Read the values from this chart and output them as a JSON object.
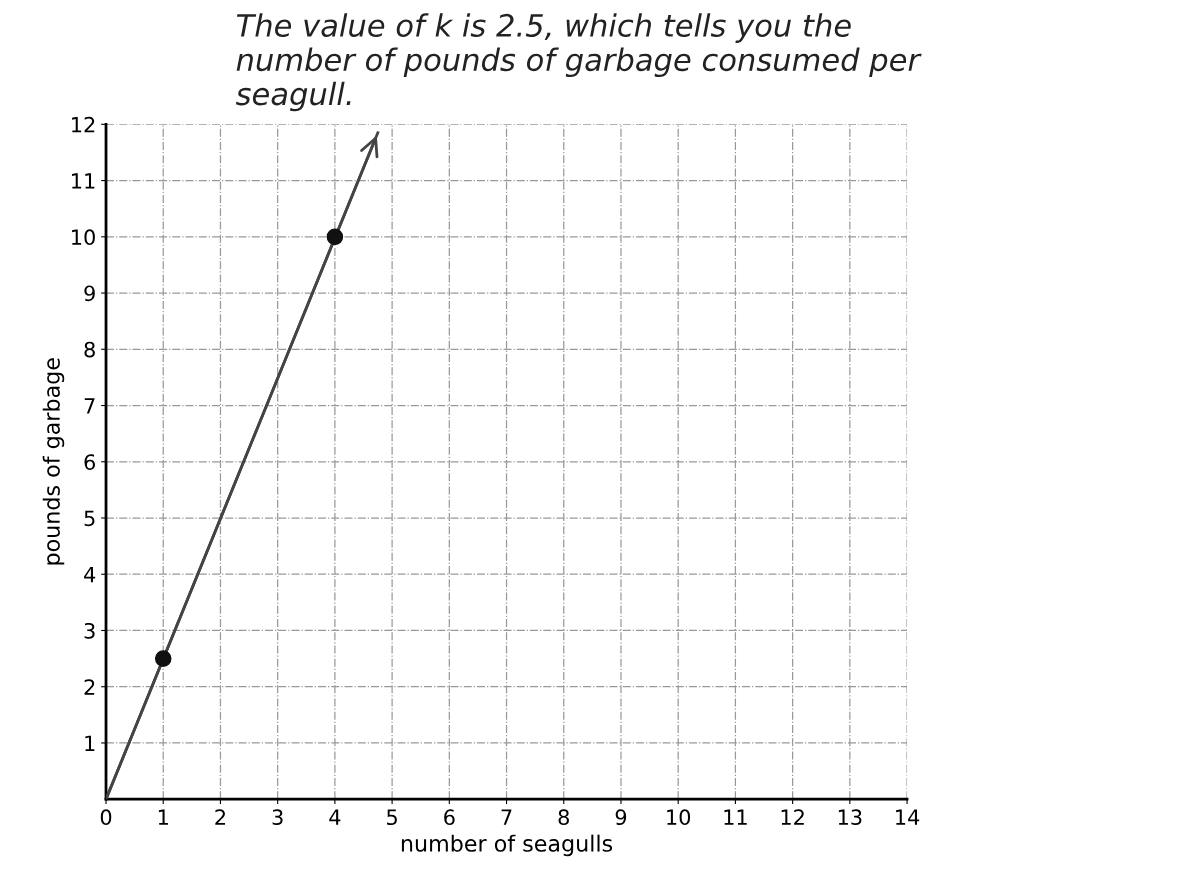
{
  "chart_data": {
    "type": "line",
    "xlabel": "number of seagulls",
    "ylabel": "pounds of garbage",
    "annotations": [
      "The value of k is 2.5, which tells you the\nnumber of pounds of garbage consumed per\nseagull."
    ],
    "series": [
      {
        "color": "#444444",
        "x": [
          0,
          4.75
        ],
        "values": [
          0,
          11.85
        ],
        "marker": "none",
        "line_style": "solid"
      },
      {
        "type": "scatter",
        "color": "#111111",
        "x": [
          1,
          4
        ],
        "values": [
          2.5,
          10
        ],
        "marker": "circle"
      }
    ],
    "xlim": [
      0,
      14
    ],
    "ylim": [
      0,
      12
    ],
    "xticks": [
      0,
      1,
      2,
      3,
      4,
      5,
      6,
      7,
      8,
      9,
      10,
      11,
      12,
      13,
      14
    ],
    "yticks": [
      1,
      2,
      3,
      4,
      5,
      6,
      7,
      8,
      9,
      10,
      11,
      12
    ],
    "grid": true,
    "legend": false
  }
}
